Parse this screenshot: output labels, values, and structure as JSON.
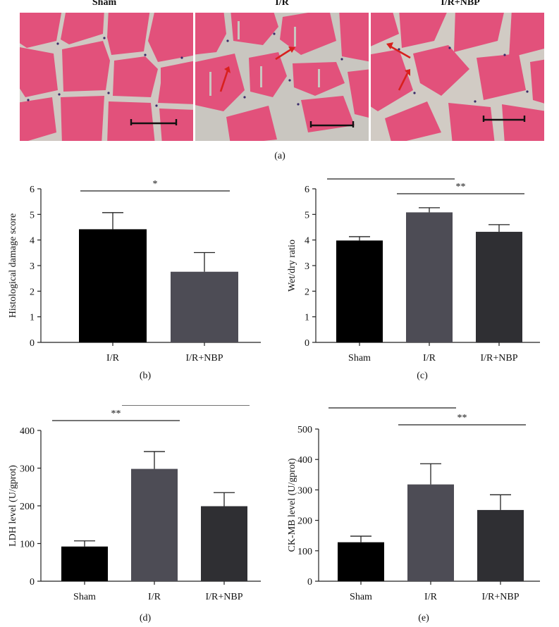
{
  "figure": {
    "panel_a": {
      "images": [
        {
          "label": "Sham"
        },
        {
          "label": "I/R"
        },
        {
          "label": "I/R+NBP"
        }
      ],
      "caption": "(a)"
    },
    "colors": {
      "sham_bar": "#000000",
      "ir_bar": "#4d4c55",
      "nbp_bar": "#2f2f33",
      "tissue_pink": "#e2517b",
      "tissue_gap": "#cfc8c2",
      "arrow_red": "#d8201e"
    }
  },
  "chart_data": [
    {
      "id": "b",
      "type": "bar",
      "caption": "(b)",
      "categories": [
        "I/R",
        "I/R+NBP"
      ],
      "values": [
        4.42,
        2.76
      ],
      "errors": [
        0.65,
        0.75
      ],
      "ylabel": "Histological damage score",
      "ylim": [
        0,
        6
      ],
      "yticks": [
        0,
        1,
        2,
        3,
        4,
        5,
        6
      ],
      "significance": [
        {
          "from": 0,
          "to": 1,
          "label": "*"
        }
      ],
      "bar_colors": [
        "#000000",
        "#4d4c55"
      ]
    },
    {
      "id": "c",
      "type": "bar",
      "caption": "(c)",
      "categories": [
        "Sham",
        "I/R",
        "I/R+NBP"
      ],
      "values": [
        3.98,
        5.08,
        4.32
      ],
      "errors": [
        0.15,
        0.18,
        0.28
      ],
      "ylabel": "Wet/dry ratio",
      "ylim": [
        0,
        6
      ],
      "yticks": [
        0,
        1,
        2,
        3,
        4,
        5,
        6
      ],
      "significance": [
        {
          "from": 0,
          "to": 1,
          "label": "**"
        },
        {
          "from": 1,
          "to": 2,
          "label": "**"
        }
      ],
      "bar_colors": [
        "#000000",
        "#4d4c55",
        "#2f2f33"
      ]
    },
    {
      "id": "d",
      "type": "bar",
      "caption": "(d)",
      "categories": [
        "Sham",
        "I/R",
        "I/R+NBP"
      ],
      "values": [
        92,
        298,
        199
      ],
      "errors": [
        15,
        46,
        36
      ],
      "ylabel": "LDH level (U/gprot)",
      "ylim": [
        0,
        400
      ],
      "yticks": [
        0,
        100,
        200,
        300,
        400
      ],
      "significance": [
        {
          "from": 0,
          "to": 1,
          "label": "**"
        },
        {
          "from": 1,
          "to": 2,
          "label": "**"
        }
      ],
      "bar_colors": [
        "#000000",
        "#4d4c55",
        "#2f2f33"
      ]
    },
    {
      "id": "e",
      "type": "bar",
      "caption": "(e)",
      "categories": [
        "Sham",
        "I/R",
        "I/R+NBP"
      ],
      "values": [
        128,
        318,
        234
      ],
      "errors": [
        20,
        68,
        50
      ],
      "ylabel": "CK-MB level (U/gprot)",
      "ylim": [
        0,
        500
      ],
      "yticks": [
        0,
        100,
        200,
        300,
        400,
        500
      ],
      "significance": [
        {
          "from": 0,
          "to": 1,
          "label": "**"
        },
        {
          "from": 1,
          "to": 2,
          "label": "**"
        }
      ],
      "bar_colors": [
        "#000000",
        "#4d4c55",
        "#2f2f33"
      ]
    }
  ]
}
